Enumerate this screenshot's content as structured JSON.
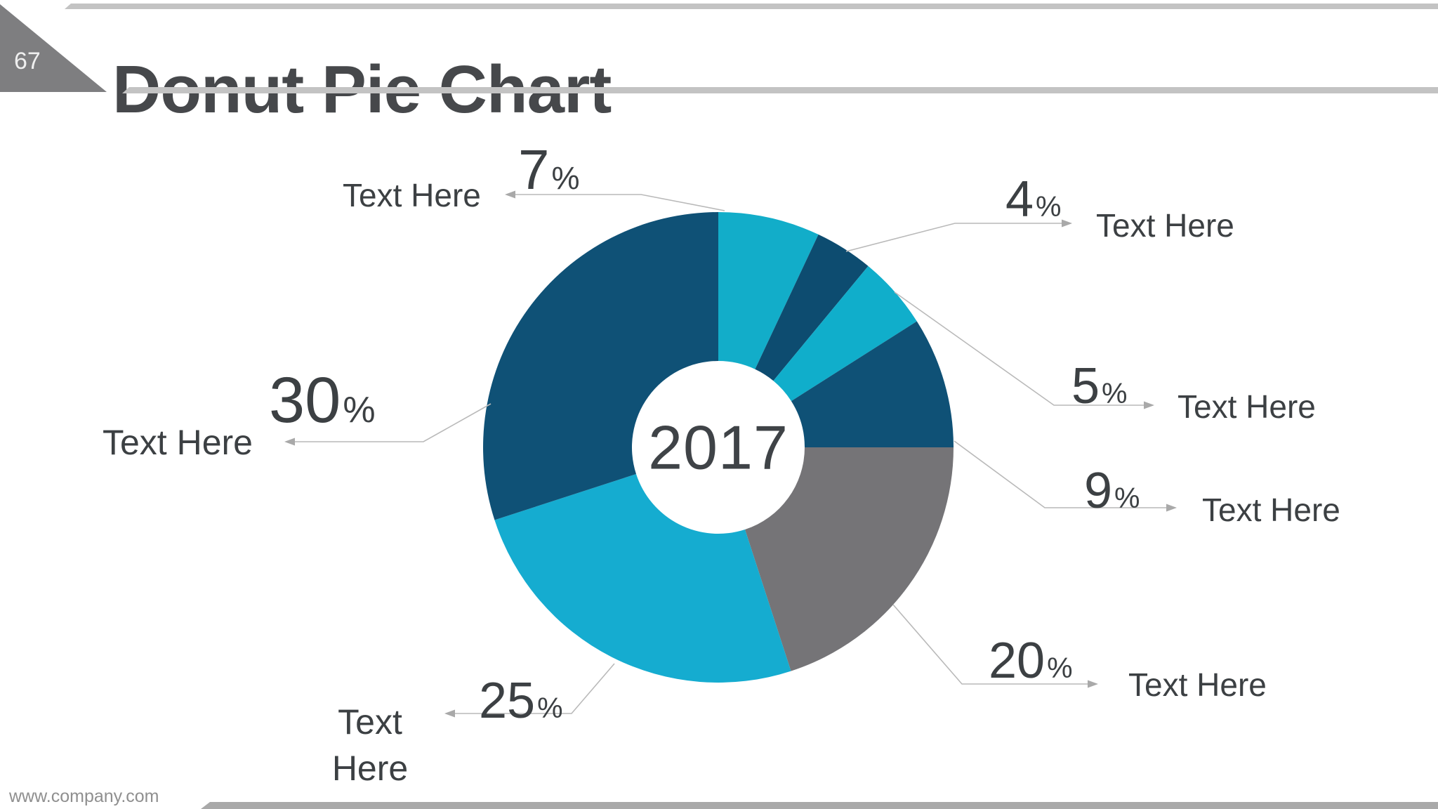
{
  "slide": {
    "page_number": "67",
    "title": "Donut Pie Chart",
    "footer_url": "www.company.com"
  },
  "chart_data": {
    "type": "pie",
    "subtype": "donut",
    "title": "Donut Pie Chart",
    "center_label": "2017",
    "unit": "%",
    "direction": "clockwise",
    "start_angle_deg": 0,
    "legend_position": "callouts",
    "series": [
      {
        "label": "Text Here",
        "value": 7,
        "color": "#12adc9"
      },
      {
        "label": "Text Here",
        "value": 4,
        "color": "#0d4c70"
      },
      {
        "label": "Text Here",
        "value": 5,
        "color": "#10aecb"
      },
      {
        "label": "Text Here",
        "value": 9,
        "color": "#0f5176"
      },
      {
        "label": "Text Here",
        "value": 20,
        "color": "#757477"
      },
      {
        "label": "Text Here",
        "value": 25,
        "color": "#15acd0"
      },
      {
        "label": "Text Here",
        "value": 30,
        "color": "#0f5176"
      }
    ],
    "leader_line_color": "#b9b9b9",
    "arrow_color": "#a9a9a9",
    "text_color": "#3c4043"
  }
}
